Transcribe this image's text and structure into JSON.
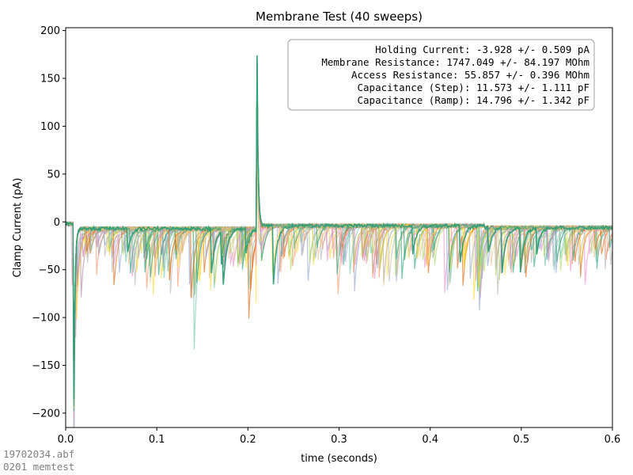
{
  "chart_data": {
    "type": "line",
    "title": "Membrane Test (40 sweeps)",
    "xlabel": "time (seconds)",
    "ylabel": "Clamp Current (pA)",
    "xlim": [
      0,
      0.6
    ],
    "ylim": [
      -215,
      203
    ],
    "xticks": [
      0,
      0.1,
      0.2,
      0.3,
      0.4,
      0.5,
      0.6
    ],
    "xtick_labels": [
      "0.0",
      "0.1",
      "0.2",
      "0.3",
      "0.4",
      "0.5",
      "0.6"
    ],
    "yticks": [
      -200,
      -150,
      -100,
      -50,
      0,
      50,
      100,
      150,
      200
    ],
    "ytick_labels": [
      "−200",
      "−150",
      "−100",
      "−50",
      "0",
      "50",
      "100",
      "150",
      "200"
    ],
    "grid": false,
    "sweep_count": 40,
    "series_colors": [
      "#66c2a5",
      "#fc8d62",
      "#8da0cb",
      "#e78ac3",
      "#a6d854",
      "#ffd92f",
      "#e5c494",
      "#b3b3b3",
      "#1b9e77",
      "#d95f02"
    ],
    "baseline_segments": [
      {
        "x": [
          0.0,
          0.009
        ],
        "y": [
          -2,
          -2
        ]
      },
      {
        "x": [
          0.009,
          0.21
        ],
        "y": [
          -7,
          -7
        ]
      },
      {
        "x": [
          0.21,
          0.46
        ],
        "y": [
          -4,
          -4
        ]
      },
      {
        "x": [
          0.46,
          0.6
        ],
        "y": [
          -6,
          -6
        ]
      }
    ],
    "transients": [
      {
        "x": 0.009,
        "peak": -195,
        "tau": 0.0012
      },
      {
        "x": 0.21,
        "peak": 183,
        "tau": 0.0012
      }
    ],
    "synaptic_events": [
      {
        "x": 0.012,
        "amp": -85
      },
      {
        "x": 0.022,
        "amp": -40
      },
      {
        "x": 0.031,
        "amp": -30
      },
      {
        "x": 0.039,
        "amp": -45
      },
      {
        "x": 0.047,
        "amp": -35
      },
      {
        "x": 0.056,
        "amp": -75
      },
      {
        "x": 0.064,
        "amp": -40
      },
      {
        "x": 0.073,
        "amp": -70
      },
      {
        "x": 0.083,
        "amp": -45
      },
      {
        "x": 0.092,
        "amp": -40
      },
      {
        "x": 0.098,
        "amp": -60
      },
      {
        "x": 0.107,
        "amp": -50
      },
      {
        "x": 0.118,
        "amp": -75
      },
      {
        "x": 0.125,
        "amp": -40
      },
      {
        "x": 0.135,
        "amp": -100
      },
      {
        "x": 0.146,
        "amp": -65
      },
      {
        "x": 0.158,
        "amp": -65
      },
      {
        "x": 0.167,
        "amp": -40
      },
      {
        "x": 0.176,
        "amp": -45
      },
      {
        "x": 0.188,
        "amp": -50
      },
      {
        "x": 0.197,
        "amp": -40
      },
      {
        "x": 0.206,
        "amp": -85
      },
      {
        "x": 0.219,
        "amp": -45
      },
      {
        "x": 0.232,
        "amp": -65
      },
      {
        "x": 0.243,
        "amp": -50
      },
      {
        "x": 0.256,
        "amp": -35
      },
      {
        "x": 0.268,
        "amp": -60
      },
      {
        "x": 0.281,
        "amp": -40
      },
      {
        "x": 0.292,
        "amp": -55
      },
      {
        "x": 0.303,
        "amp": -45
      },
      {
        "x": 0.316,
        "amp": -70
      },
      {
        "x": 0.329,
        "amp": -45
      },
      {
        "x": 0.342,
        "amp": -60
      },
      {
        "x": 0.353,
        "amp": -85
      },
      {
        "x": 0.366,
        "amp": -65
      },
      {
        "x": 0.377,
        "amp": -50
      },
      {
        "x": 0.389,
        "amp": -60
      },
      {
        "x": 0.401,
        "amp": -55
      },
      {
        "x": 0.416,
        "amp": -80
      },
      {
        "x": 0.427,
        "amp": -50
      },
      {
        "x": 0.44,
        "amp": -60
      },
      {
        "x": 0.452,
        "amp": -85
      },
      {
        "x": 0.464,
        "amp": -50
      },
      {
        "x": 0.476,
        "amp": -75
      },
      {
        "x": 0.49,
        "amp": -60
      },
      {
        "x": 0.503,
        "amp": -55
      },
      {
        "x": 0.516,
        "amp": -40
      },
      {
        "x": 0.53,
        "amp": -50
      },
      {
        "x": 0.541,
        "amp": -65
      },
      {
        "x": 0.553,
        "amp": -55
      },
      {
        "x": 0.566,
        "amp": -70
      },
      {
        "x": 0.58,
        "amp": -45
      },
      {
        "x": 0.592,
        "amp": -50
      }
    ],
    "annotation": {
      "placement": "top-right",
      "lines": [
        "Holding Current: -3.928 +/- 0.509 pA",
        "Membrane Resistance: 1747.049 +/- 84.197 MOhm",
        "Access Resistance: 55.857 +/- 0.396 MOhm",
        "Capacitance (Step): 11.573 +/- 1.111 pF",
        "Capacitance (Ramp): 14.796 +/- 1.342 pF"
      ]
    }
  },
  "footer": {
    "file_name": "19702034.abf",
    "protocol": "0201 memtest"
  }
}
